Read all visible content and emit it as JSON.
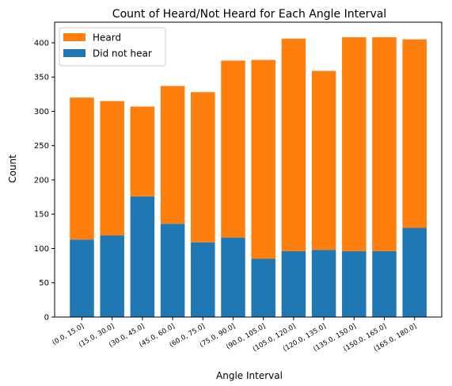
{
  "chart_data": {
    "type": "bar",
    "stacked": true,
    "title": "Count of Heard/Not Heard for Each Angle Interval",
    "xlabel": "Angle Interval",
    "ylabel": "Count",
    "ylim": [
      0,
      430
    ],
    "yticks": [
      0,
      50,
      100,
      150,
      200,
      250,
      300,
      350,
      400
    ],
    "categories": [
      "(0.0, 15.0]",
      "(15.0, 30.0]",
      "(30.0, 45.0]",
      "(45.0, 60.0]",
      "(60.0, 75.0]",
      "(75.0, 90.0]",
      "(90.0, 105.0]",
      "(105.0, 120.0]",
      "(120.0, 135.0]",
      "(135.0, 150.0]",
      "(150.0, 165.0]",
      "(165.0, 180.0]"
    ],
    "series": [
      {
        "name": "Did not hear",
        "color": "#1f77b4",
        "values": [
          113,
          119,
          176,
          136,
          109,
          116,
          85,
          96,
          98,
          96,
          96,
          130
        ]
      },
      {
        "name": "Heard",
        "color": "#ff7f0e",
        "values": [
          207,
          196,
          131,
          201,
          219,
          258,
          290,
          310,
          261,
          312,
          312,
          275
        ]
      }
    ],
    "legend": {
      "position": "top-left",
      "order": [
        "Heard",
        "Did not hear"
      ]
    },
    "grid": false
  }
}
